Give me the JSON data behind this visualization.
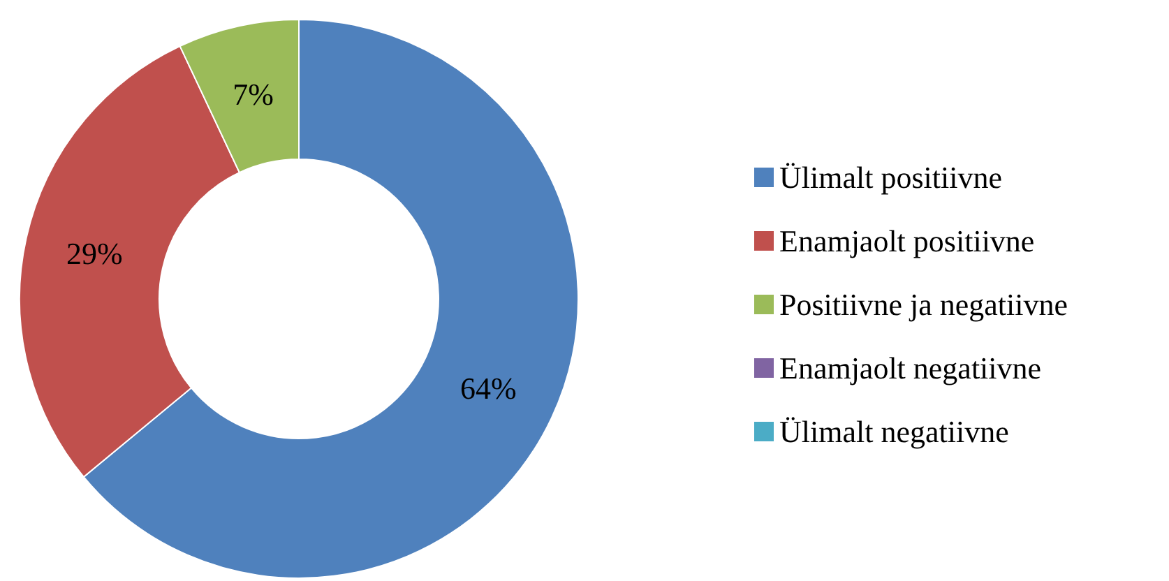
{
  "chart_data": {
    "type": "donut",
    "categories": [
      "Ülimalt positiivne",
      "Enamjaolt positiivne",
      "Positiivne ja negatiivne",
      "Enamjaolt negatiivne",
      "Ülimalt negatiivne"
    ],
    "values": [
      64,
      29,
      7,
      0,
      0
    ],
    "colors": [
      "#4f81bd",
      "#c0504d",
      "#9bbb59",
      "#8064a2",
      "#4bacc6"
    ],
    "value_labels": [
      "64%",
      "29%",
      "7%",
      null,
      null
    ],
    "legend": "right"
  }
}
